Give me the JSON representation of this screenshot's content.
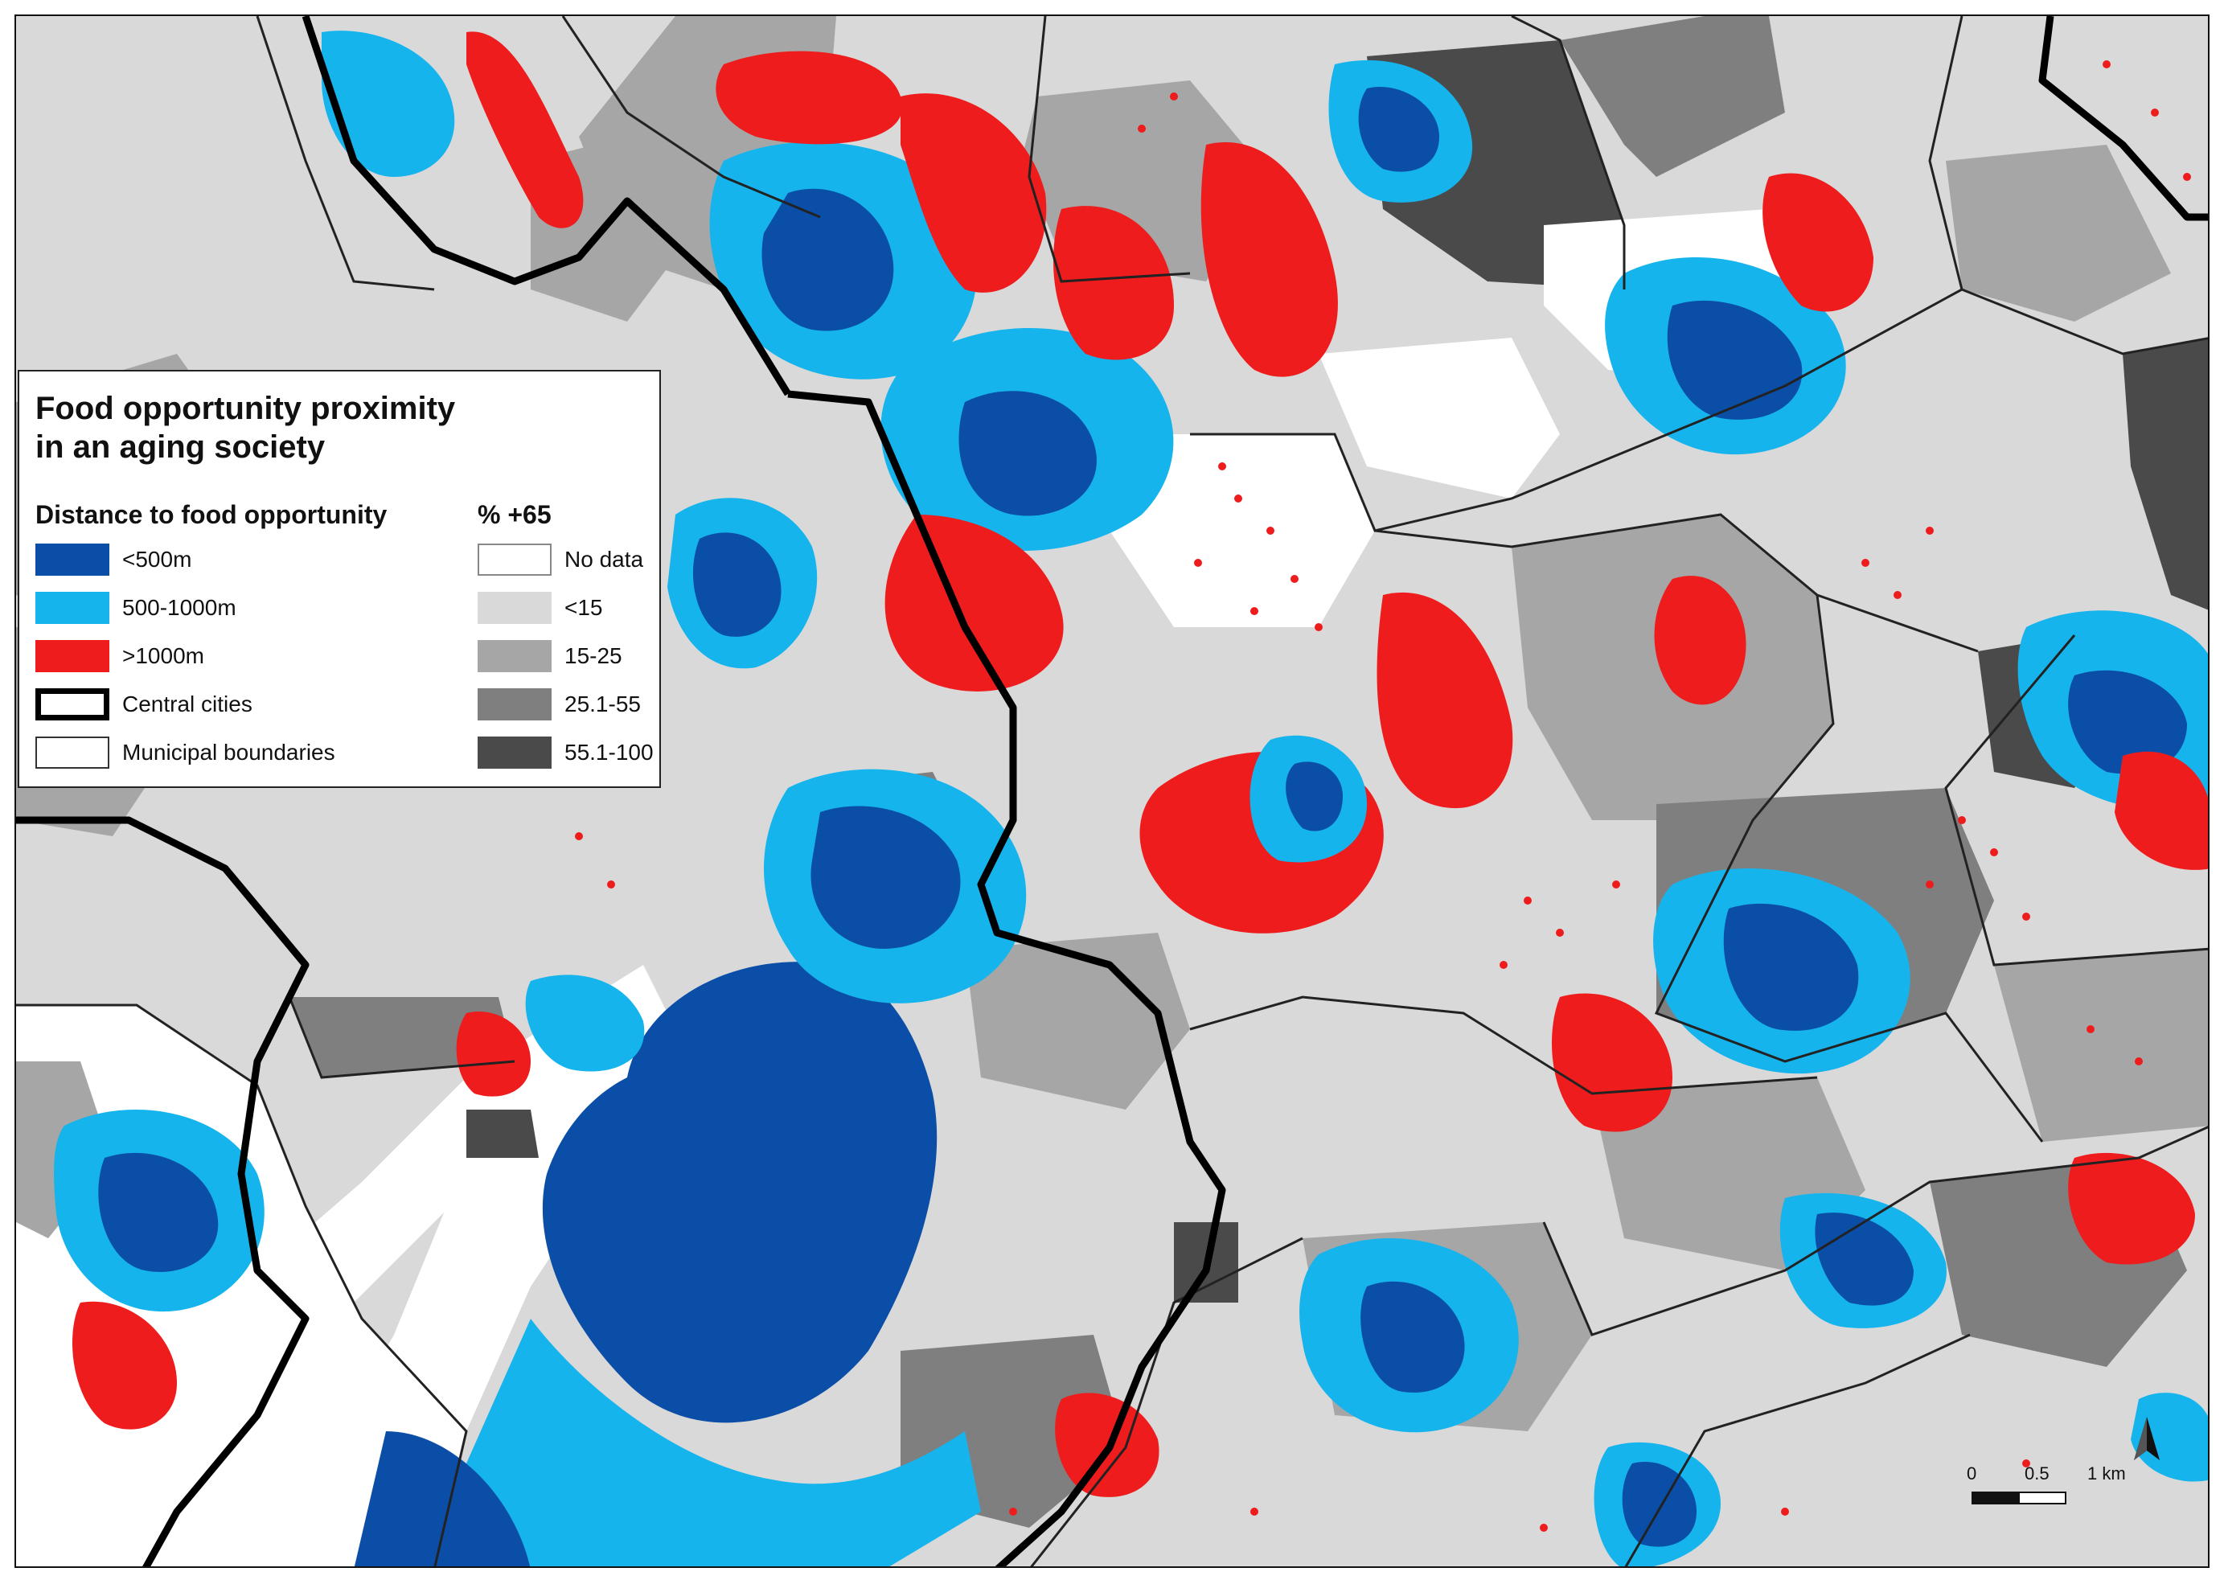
{
  "legend": {
    "title_line1": "Food opportunity proximity",
    "title_line2": "in an aging society",
    "distance_heading": "Distance to food opportunity",
    "age_heading": "% +65",
    "distance_classes": [
      {
        "label": "<500m",
        "color": "#0a4ea8"
      },
      {
        "label": "500-1000m",
        "color": "#16b4ec"
      },
      {
        "label": ">1000m",
        "color": "#ee1c1c"
      }
    ],
    "boundary_classes": [
      {
        "label": "Central cities",
        "style": "thick-black-outline"
      },
      {
        "label": "Municipal boundaries",
        "style": "thin-outline"
      }
    ],
    "age_classes": [
      {
        "label": "No data",
        "color": "#ffffff"
      },
      {
        "label": "<15",
        "color": "#d9d9d9"
      },
      {
        "label": "15-25",
        "color": "#a6a6a6"
      },
      {
        "label": "25.1-55",
        "color": "#7f7f7f"
      },
      {
        "label": "55.1-100",
        "color": "#4a4a4a"
      }
    ]
  },
  "scale": {
    "label_0": "0",
    "label_mid": "0.5",
    "label_end": "1 km"
  },
  "north_arrow": {
    "icon": "north-arrow-icon"
  }
}
